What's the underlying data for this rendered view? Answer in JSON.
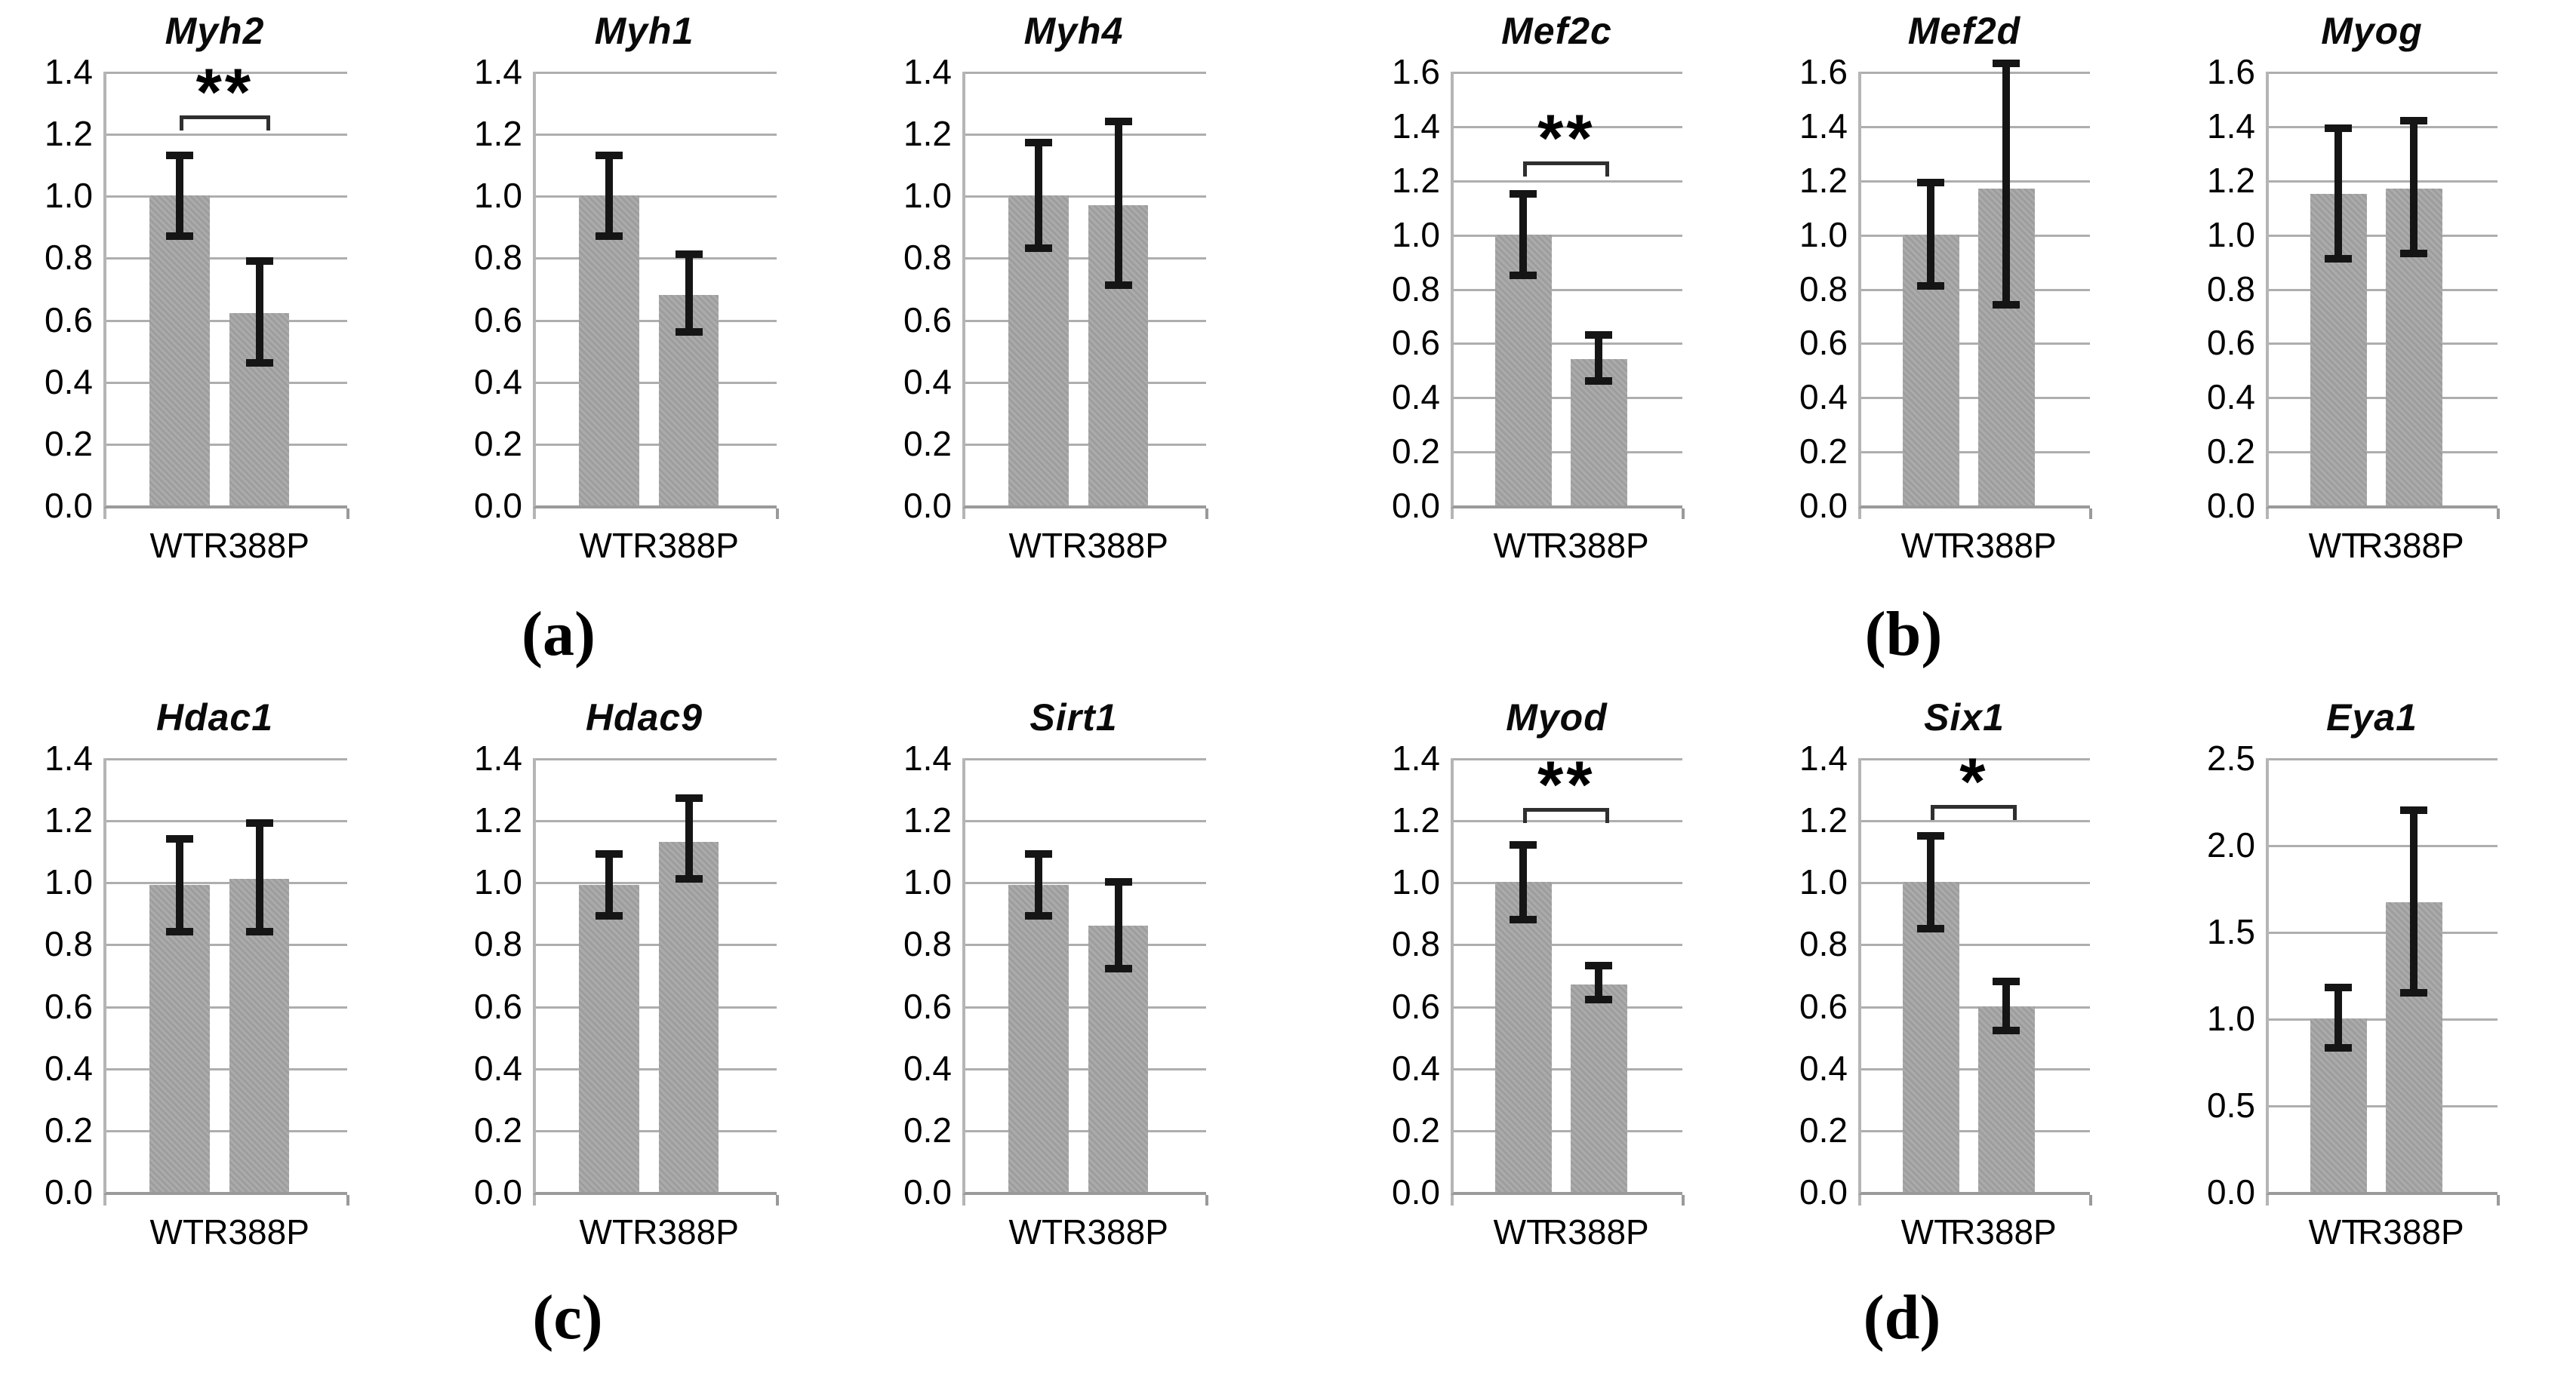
{
  "figure": {
    "panel_labels": [
      "(a)",
      "(b)",
      "(c)",
      "(d)"
    ],
    "background": "#ffffff"
  },
  "colors": {
    "bar": "#a5a5a5",
    "gridline": "#aeaeae",
    "y_axis": "#b5b5b5",
    "x_axis": "#9a9a9a",
    "error_bar": "#151515",
    "bracket": "#2f2f2f",
    "text": "#000000"
  },
  "chart_data": [
    {
      "type": "bar",
      "title": "Myh2",
      "panel": "a",
      "categories": [
        "WT",
        "R388P"
      ],
      "values": [
        1.0,
        0.62
      ],
      "error_low": [
        0.87,
        0.46
      ],
      "error_high": [
        1.13,
        0.79
      ],
      "ylim": [
        0,
        1.4
      ],
      "yticks": [
        "1.4",
        "1.2",
        "1.0",
        "0.8",
        "0.6",
        "0.4",
        "0.2",
        "0.0"
      ],
      "grid": true,
      "significance": {
        "label": "**",
        "y": 1.26
      }
    },
    {
      "type": "bar",
      "title": "Myh1",
      "panel": "a",
      "categories": [
        "WT",
        "R388P"
      ],
      "values": [
        1.0,
        0.68
      ],
      "error_low": [
        0.87,
        0.56
      ],
      "error_high": [
        1.13,
        0.81
      ],
      "ylim": [
        0,
        1.4
      ],
      "yticks": [
        "1.4",
        "1.2",
        "1.0",
        "0.8",
        "0.6",
        "0.4",
        "0.2",
        "0.0"
      ],
      "grid": true,
      "significance": null
    },
    {
      "type": "bar",
      "title": "Myh4",
      "panel": "a",
      "categories": [
        "WT",
        "R388P"
      ],
      "values": [
        1.0,
        0.97
      ],
      "error_low": [
        0.83,
        0.71
      ],
      "error_high": [
        1.17,
        1.24
      ],
      "ylim": [
        0,
        1.4
      ],
      "yticks": [
        "1.4",
        "1.2",
        "1.0",
        "0.8",
        "0.6",
        "0.4",
        "0.2",
        "0.0"
      ],
      "grid": true,
      "significance": null
    },
    {
      "type": "bar",
      "title": "Mef2c",
      "panel": "b",
      "categories": [
        "WT",
        "R388P"
      ],
      "values": [
        1.0,
        0.54
      ],
      "error_low": [
        0.85,
        0.46
      ],
      "error_high": [
        1.15,
        0.63
      ],
      "ylim": [
        0,
        1.6
      ],
      "yticks": [
        "1.6",
        "1.4",
        "1.2",
        "1.0",
        "0.8",
        "0.6",
        "0.4",
        "0.2",
        "0.0"
      ],
      "grid": true,
      "significance": {
        "label": "**",
        "y": 1.27
      }
    },
    {
      "type": "bar",
      "title": "Mef2d",
      "panel": "b",
      "categories": [
        "WT",
        "R388P"
      ],
      "values": [
        1.0,
        1.17
      ],
      "error_low": [
        0.81,
        0.74
      ],
      "error_high": [
        1.19,
        1.63
      ],
      "ylim": [
        0,
        1.6
      ],
      "yticks": [
        "1.6",
        "1.4",
        "1.2",
        "1.0",
        "0.8",
        "0.6",
        "0.4",
        "0.2",
        "0.0"
      ],
      "grid": true,
      "significance": null
    },
    {
      "type": "bar",
      "title": "Myog",
      "panel": "b",
      "categories": [
        "WT",
        "R388P"
      ],
      "values": [
        1.15,
        1.17
      ],
      "error_low": [
        0.91,
        0.93
      ],
      "error_high": [
        1.39,
        1.42
      ],
      "ylim": [
        0,
        1.6
      ],
      "yticks": [
        "1.6",
        "1.4",
        "1.2",
        "1.0",
        "0.8",
        "0.6",
        "0.4",
        "0.2",
        "0.0"
      ],
      "grid": true,
      "significance": null
    },
    {
      "type": "bar",
      "title": "Hdac1",
      "panel": "c",
      "categories": [
        "WT",
        "R388P"
      ],
      "values": [
        0.99,
        1.01
      ],
      "error_low": [
        0.84,
        0.84
      ],
      "error_high": [
        1.14,
        1.19
      ],
      "ylim": [
        0,
        1.4
      ],
      "yticks": [
        "1.4",
        "1.2",
        "1.0",
        "0.8",
        "0.6",
        "0.4",
        "0.2",
        "0.0"
      ],
      "grid": true,
      "significance": null
    },
    {
      "type": "bar",
      "title": "Hdac9",
      "panel": "c",
      "categories": [
        "WT",
        "R388P"
      ],
      "values": [
        0.99,
        1.13
      ],
      "error_low": [
        0.89,
        1.01
      ],
      "error_high": [
        1.09,
        1.27
      ],
      "ylim": [
        0,
        1.4
      ],
      "yticks": [
        "1.4",
        "1.2",
        "1.0",
        "0.8",
        "0.6",
        "0.4",
        "0.2",
        "0.0"
      ],
      "grid": true,
      "significance": null
    },
    {
      "type": "bar",
      "title": "Sirt1",
      "panel": "c",
      "categories": [
        "WT",
        "R388P"
      ],
      "values": [
        0.99,
        0.86
      ],
      "error_low": [
        0.89,
        0.72
      ],
      "error_high": [
        1.09,
        1.0
      ],
      "ylim": [
        0,
        1.4
      ],
      "yticks": [
        "1.4",
        "1.2",
        "1.0",
        "0.8",
        "0.6",
        "0.4",
        "0.2",
        "0.0"
      ],
      "grid": true,
      "significance": null
    },
    {
      "type": "bar",
      "title": "Myod",
      "panel": "d",
      "categories": [
        "WT",
        "R388P"
      ],
      "values": [
        1.0,
        0.67
      ],
      "error_low": [
        0.88,
        0.62
      ],
      "error_high": [
        1.12,
        0.73
      ],
      "ylim": [
        0,
        1.4
      ],
      "yticks": [
        "1.4",
        "1.2",
        "1.0",
        "0.8",
        "0.6",
        "0.4",
        "0.2",
        "0.0"
      ],
      "grid": true,
      "significance": {
        "label": "**",
        "y": 1.24
      }
    },
    {
      "type": "bar",
      "title": "Six1",
      "panel": "d",
      "categories": [
        "WT",
        "R388P"
      ],
      "values": [
        1.0,
        0.6
      ],
      "error_low": [
        0.85,
        0.52
      ],
      "error_high": [
        1.15,
        0.68
      ],
      "ylim": [
        0,
        1.4
      ],
      "yticks": [
        "1.4",
        "1.2",
        "1.0",
        "0.8",
        "0.6",
        "0.4",
        "0.2",
        "0.0"
      ],
      "grid": true,
      "significance": {
        "label": "*",
        "y": 1.25
      }
    },
    {
      "type": "bar",
      "title": "Eya1",
      "panel": "d",
      "categories": [
        "WT",
        "R388P"
      ],
      "values": [
        1.0,
        1.67
      ],
      "error_low": [
        0.83,
        1.15
      ],
      "error_high": [
        1.18,
        2.2
      ],
      "ylim": [
        0,
        2.5
      ],
      "yticks": [
        "2.5",
        "2.0",
        "1.5",
        "1.0",
        "0.5",
        "0.0"
      ],
      "grid": true,
      "significance": null
    }
  ]
}
